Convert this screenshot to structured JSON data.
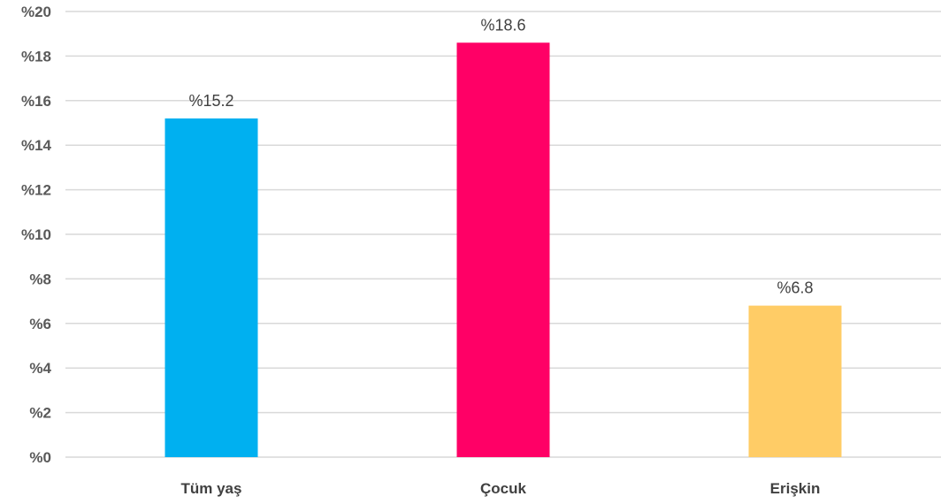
{
  "chart_data": {
    "type": "bar",
    "categories": [
      "Tüm yaş",
      "Çocuk",
      "Erişkin"
    ],
    "values": [
      15.2,
      18.6,
      6.8
    ],
    "data_labels": [
      "%15.2",
      "%18.6",
      "%6.8"
    ],
    "colors": [
      "#00b0f0",
      "#ff0066",
      "#ffcc66"
    ],
    "ylim": [
      0,
      20
    ],
    "yticks": [
      0,
      2,
      4,
      6,
      8,
      10,
      12,
      14,
      16,
      18,
      20
    ],
    "ytick_labels": [
      "%0",
      "%2",
      "%4",
      "%6",
      "%8",
      "%10",
      "%12",
      "%14",
      "%16",
      "%18",
      "%20"
    ],
    "grid": true,
    "gridline_color": "#d9d9d9"
  }
}
